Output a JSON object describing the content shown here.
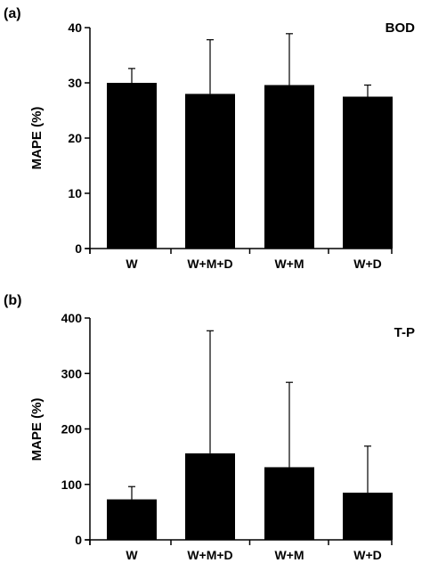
{
  "chart_data": [
    {
      "type": "bar",
      "panel_label": "(a)",
      "title": "BOD",
      "ylabel": "MAPE (%)",
      "xlabel": "",
      "categories": [
        "W",
        "W+M+D",
        "W+M",
        "W+D"
      ],
      "values": [
        30,
        28,
        29.6,
        27.5
      ],
      "errors": [
        2.6,
        9.8,
        9.3,
        2.1
      ],
      "ylim": [
        0,
        40
      ],
      "yticks": [
        0,
        10,
        20,
        30,
        40
      ],
      "ytick_labels": [
        "0",
        "10",
        "20",
        "30",
        "40"
      ],
      "bar_color": "#000000",
      "grid": false
    },
    {
      "type": "bar",
      "panel_label": "(b)",
      "title": "T-P",
      "ylabel": "MAPE (%)",
      "xlabel": "",
      "categories": [
        "W",
        "W+M+D",
        "W+M",
        "W+D"
      ],
      "values": [
        73,
        156,
        131,
        85
      ],
      "errors": [
        23,
        221,
        153,
        84
      ],
      "ylim": [
        0,
        400
      ],
      "yticks": [
        0,
        100,
        200,
        300,
        400
      ],
      "ytick_labels": [
        "0",
        "100",
        "200",
        "300",
        "400"
      ],
      "bar_color": "#000000",
      "grid": false
    }
  ]
}
